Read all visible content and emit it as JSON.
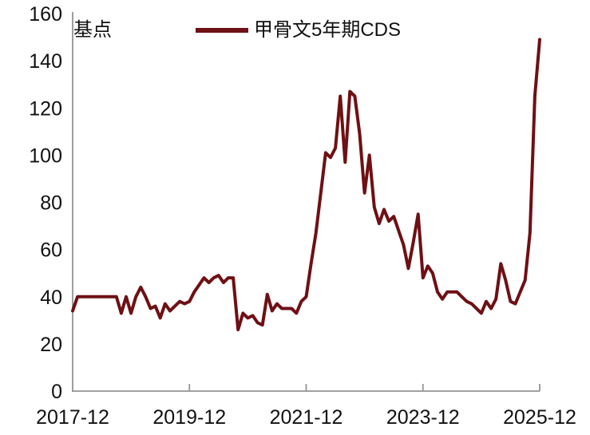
{
  "page": {
    "background": "#ffffff"
  },
  "chart_data": {
    "type": "line",
    "title": "",
    "ylabel": "基点",
    "xlabel": "",
    "x_start": "2017-12",
    "x_frequency": "monthly",
    "x_tick_labels": [
      "2017-12",
      "2019-12",
      "2021-12",
      "2023-12",
      "2025-12"
    ],
    "y_ticks": [
      0,
      20,
      40,
      60,
      80,
      100,
      120,
      140,
      160
    ],
    "ylim": [
      0,
      160
    ],
    "grid": false,
    "legend_position": "top-center",
    "axis_color": "#949494",
    "text_color": "#111111",
    "series": [
      {
        "name": "甲骨文5年期CDS",
        "color": "#6e1014",
        "values": [
          34,
          40,
          40,
          40,
          40,
          40,
          40,
          40,
          40,
          40,
          33,
          40,
          33,
          40,
          44,
          40,
          35,
          36,
          31,
          37,
          34,
          36,
          38,
          37,
          38,
          42,
          45,
          48,
          46,
          48,
          49,
          46,
          48,
          48,
          26,
          33,
          31,
          32,
          29,
          28,
          41,
          34,
          37,
          35,
          35,
          35,
          33,
          38,
          40,
          54,
          67,
          84,
          101,
          99,
          103,
          125,
          97,
          127,
          125,
          109,
          84,
          100,
          78,
          71,
          77,
          72,
          74,
          68,
          62,
          52,
          63,
          75,
          48,
          53,
          50,
          42,
          39,
          42,
          42,
          42,
          40,
          38,
          37,
          35,
          33,
          38,
          35,
          39,
          54,
          47,
          38,
          37,
          42,
          47,
          67,
          125,
          149
        ]
      }
    ]
  }
}
